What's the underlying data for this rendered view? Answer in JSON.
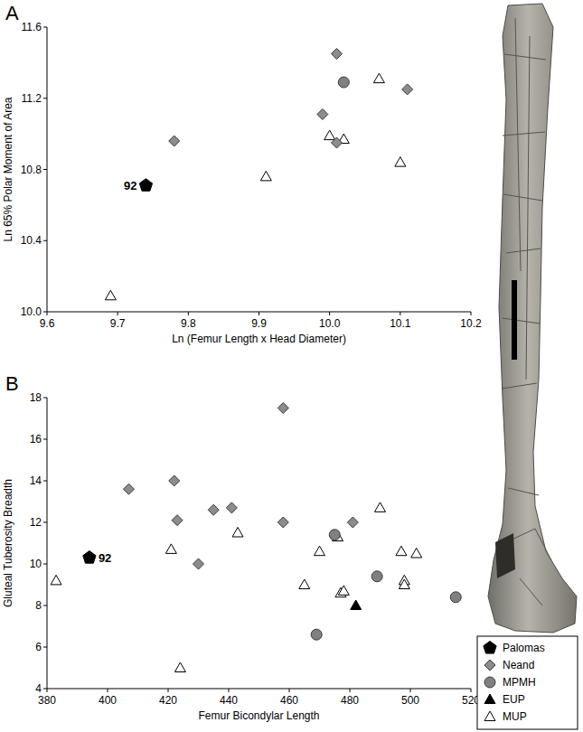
{
  "chart_data": [
    {
      "type": "scatter",
      "label": "A",
      "x_label": "Ln (Femur Length x Head Diameter)",
      "y_label": "Ln 65% Polar Moment of Area",
      "xlim": [
        9.6,
        10.2
      ],
      "xticks": [
        9.6,
        9.7,
        9.8,
        9.9,
        {
          "value": 10,
          "label": "10.0"
        },
        10.1,
        10.2
      ],
      "ylim": [
        10,
        11.6
      ],
      "yticks": [
        {
          "value": 10,
          "label": "10.0"
        },
        10.4,
        10.8,
        11.2,
        11.6
      ],
      "annotations": [
        {
          "text": "92",
          "x": 9.74,
          "y": 10.71
        }
      ],
      "series": [
        {
          "name": "Palomas",
          "color": "#000000",
          "marker": "pentagon",
          "x": [
            9.74
          ],
          "y": [
            10.71
          ]
        },
        {
          "name": "Neand",
          "color": "#8c8c8c",
          "marker": "diamond",
          "x": [
            9.78,
            9.99,
            10.01,
            10.01,
            10.11
          ],
          "y": [
            10.96,
            11.11,
            10.95,
            11.45,
            11.25
          ]
        },
        {
          "name": "MPMH",
          "color": "#808080",
          "marker": "circle",
          "x": [
            10.02
          ],
          "y": [
            11.29
          ]
        },
        {
          "name": "MUP",
          "color": "#ffffff",
          "marker": "triangle",
          "x": [
            9.69,
            9.91,
            10.0,
            10.02,
            10.07,
            10.1
          ],
          "y": [
            10.09,
            10.76,
            10.99,
            10.97,
            11.31,
            10.84
          ]
        }
      ]
    },
    {
      "type": "scatter",
      "label": "B",
      "x_label": "Femur Bicondylar Length",
      "y_label": "Gluteal Tuberosity Breadth",
      "xlim": [
        380,
        520
      ],
      "xticks": [
        380,
        400,
        420,
        440,
        460,
        480,
        500,
        520
      ],
      "ylim": [
        4,
        18
      ],
      "yticks": [
        4,
        6,
        8,
        10,
        12,
        14,
        16,
        18
      ],
      "legend": "right",
      "annotations": [
        {
          "text": "92",
          "x": 394,
          "y": 10.3
        }
      ],
      "series": [
        {
          "name": "Palomas",
          "color": "#000000",
          "marker": "pentagon",
          "x": [
            394
          ],
          "y": [
            10.3
          ]
        },
        {
          "name": "Neand",
          "color": "#8c8c8c",
          "marker": "diamond",
          "x": [
            407,
            422,
            423,
            430,
            435,
            441,
            458,
            458,
            481
          ],
          "y": [
            13.6,
            14,
            12.1,
            10,
            12.6,
            12.7,
            17.5,
            12,
            12
          ]
        },
        {
          "name": "MPMH",
          "color": "#808080",
          "marker": "circle",
          "x": [
            469,
            475,
            489,
            515
          ],
          "y": [
            6.6,
            11.4,
            9.4,
            8.4
          ]
        },
        {
          "name": "EUP",
          "color": "#000000",
          "marker": "triangle",
          "x": [
            482
          ],
          "y": [
            8
          ]
        },
        {
          "name": "MUP",
          "color": "#ffffff",
          "marker": "triangle",
          "x": [
            383,
            421,
            424,
            443,
            465,
            470,
            476,
            477,
            478,
            490,
            497,
            498,
            498,
            502
          ],
          "y": [
            9.2,
            10.7,
            5,
            11.5,
            9,
            10.6,
            11.3,
            8.6,
            8.7,
            12.7,
            10.6,
            9.2,
            9.0,
            10.5
          ]
        }
      ]
    }
  ]
}
